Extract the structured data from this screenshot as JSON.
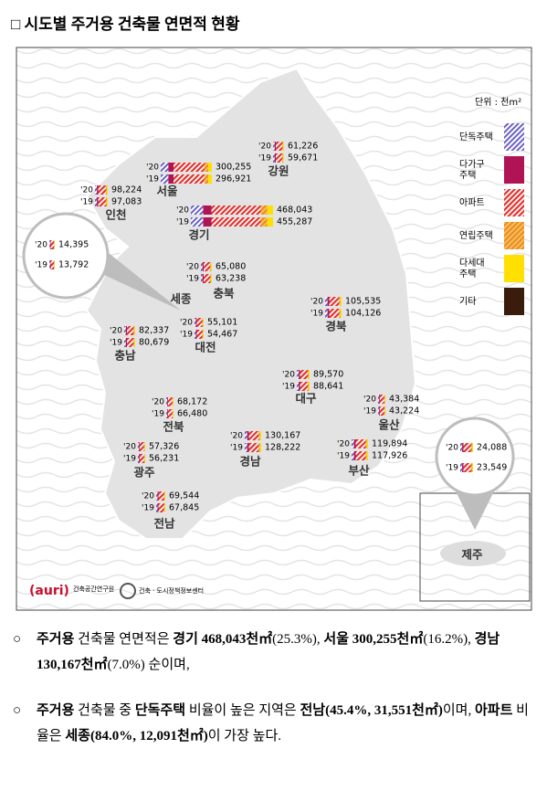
{
  "header": {
    "title": "□ 시도별 주거용 건축물 연면적 현황"
  },
  "map": {
    "unit": "단위 : 천m²",
    "year_labels": [
      "'20",
      "'19"
    ],
    "legend": [
      {
        "lines": [
          "단독주택"
        ]
      },
      {
        "lines": [
          "다가구",
          "주택"
        ]
      },
      {
        "lines": [
          "아파트"
        ]
      },
      {
        "lines": [
          "연립주택"
        ]
      },
      {
        "lines": [
          "다세대",
          "주택"
        ]
      },
      {
        "lines": [
          "기타"
        ]
      }
    ],
    "regions": [
      {
        "name": "서울",
        "v2020": "300,255",
        "v2019": "296,921"
      },
      {
        "name": "강원",
        "v2020": "61,226",
        "v2019": "59,671"
      },
      {
        "name": "인천",
        "v2020": "98,224",
        "v2019": "97,083"
      },
      {
        "name": "경기",
        "v2020": "468,043",
        "v2019": "455,287"
      },
      {
        "name": "세종",
        "v2020": "14,395",
        "v2019": "13,792"
      },
      {
        "name": "충북",
        "v2020": "65,080",
        "v2019": "63,238"
      },
      {
        "name": "경북",
        "v2020": "105,535",
        "v2019": "104,126"
      },
      {
        "name": "대전",
        "v2020": "55,101",
        "v2019": "54,467"
      },
      {
        "name": "충남",
        "v2020": "82,337",
        "v2019": "80,679"
      },
      {
        "name": "대구",
        "v2020": "89,570",
        "v2019": "88,641"
      },
      {
        "name": "울산",
        "v2020": "43,384",
        "v2019": "43,224"
      },
      {
        "name": "전북",
        "v2020": "68,172",
        "v2019": "66,480"
      },
      {
        "name": "경남",
        "v2020": "130,167",
        "v2019": "128,222"
      },
      {
        "name": "부산",
        "v2020": "119,894",
        "v2019": "117,926"
      },
      {
        "name": "광주",
        "v2020": "57,326",
        "v2019": "56,231"
      },
      {
        "name": "전남",
        "v2020": "69,544",
        "v2019": "67,845"
      },
      {
        "name": "제주",
        "v2020": "24,088",
        "v2019": "23,549"
      }
    ],
    "logos": [
      "(auri)",
      "건축공간연구원",
      "건축 · 도시정책정보센터"
    ]
  },
  "bullets": [
    {
      "marker": "○",
      "segments": [
        {
          "text": "주거용",
          "bold": true
        },
        {
          "text": " 건축물 연면적은 ",
          "bold": false
        },
        {
          "text": "경기 468,043천㎡",
          "bold": true
        },
        {
          "text": "(25.3%), ",
          "bold": false
        },
        {
          "text": "서울 300,255천㎡",
          "bold": true
        },
        {
          "text": "(16.2%), ",
          "bold": false
        },
        {
          "text": "경남 130,167천㎡",
          "bold": true
        },
        {
          "text": "(7.0%) 순이며,",
          "bold": false
        }
      ]
    },
    {
      "marker": "○",
      "segments": [
        {
          "text": "주거용",
          "bold": true
        },
        {
          "text": " 건축물 중 ",
          "bold": false
        },
        {
          "text": "단독주택",
          "bold": true
        },
        {
          "text": " 비율이 높은 지역은 ",
          "bold": false
        },
        {
          "text": "전남(45.4%, 31,551천㎡)",
          "bold": true
        },
        {
          "text": "이며, ",
          "bold": false
        },
        {
          "text": "아파트",
          "bold": true
        },
        {
          "text": " 비율은 ",
          "bold": false
        },
        {
          "text": "세종(84.0%, 12,091천㎡)",
          "bold": true
        },
        {
          "text": "이 가장 높다.",
          "bold": false
        }
      ]
    }
  ]
}
